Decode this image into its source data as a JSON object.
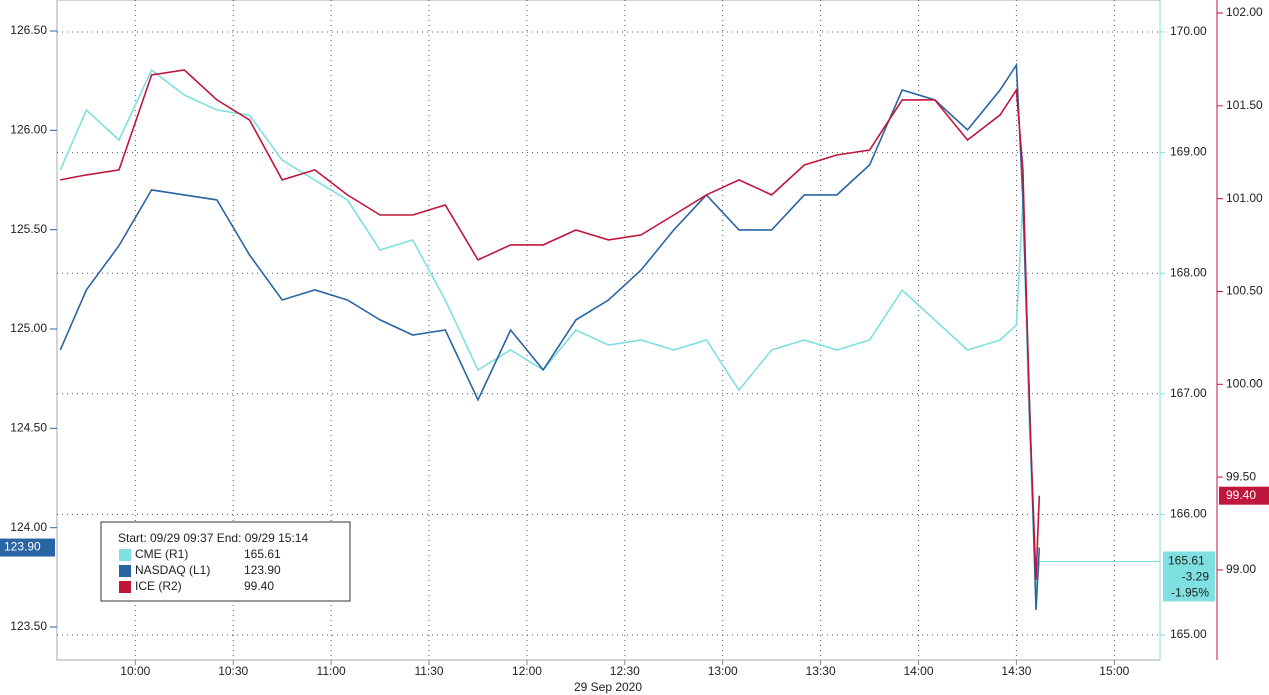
{
  "chart_data": {
    "type": "line",
    "x_label": "29 Sep 2020",
    "x": [
      577,
      585,
      595,
      605,
      615,
      625,
      635,
      645,
      655,
      665,
      675,
      685,
      695,
      705,
      715,
      725,
      735,
      745,
      755,
      765,
      775,
      785,
      795,
      805,
      815,
      825,
      835,
      845,
      855,
      865,
      870,
      872,
      874,
      876,
      877
    ],
    "xlim": [
      576,
      914
    ],
    "xticks": [
      {
        "value": 600,
        "label": "10:00"
      },
      {
        "value": 630,
        "label": "10:30"
      },
      {
        "value": 660,
        "label": "11:00"
      },
      {
        "value": 690,
        "label": "11:30"
      },
      {
        "value": 720,
        "label": "12:00"
      },
      {
        "value": 750,
        "label": "12:30"
      },
      {
        "value": 780,
        "label": "13:00"
      },
      {
        "value": 810,
        "label": "13:30"
      },
      {
        "value": 840,
        "label": "14:00"
      },
      {
        "value": 870,
        "label": "14:30"
      },
      {
        "value": 900,
        "label": "15:00"
      }
    ],
    "ylim": [
      123.334,
      126.656
    ],
    "yticks": [
      {
        "value": 123.5,
        "label": "123.50"
      },
      {
        "value": 124,
        "label": "124.00"
      },
      {
        "value": 124.5,
        "label": "124.50"
      },
      {
        "value": 125,
        "label": "125.00"
      },
      {
        "value": 125.5,
        "label": "125.50"
      },
      {
        "value": 126,
        "label": "126.00"
      },
      {
        "value": 126.5,
        "label": "126.50"
      }
    ],
    "y2lim": [
      164.793,
      170.265
    ],
    "y2ticks": [
      {
        "value": 165,
        "label": "165.00"
      },
      {
        "value": 166,
        "label": "166.00"
      },
      {
        "value": 167,
        "label": "167.00"
      },
      {
        "value": 168,
        "label": "168.00"
      },
      {
        "value": 169,
        "label": "169.00"
      },
      {
        "value": 170,
        "label": "170.00"
      }
    ],
    "y3lim": [
      98.515,
      102.07
    ],
    "y3ticks": [
      {
        "value": 99,
        "label": "99.00"
      },
      {
        "value": 99.5,
        "label": "99.50"
      },
      {
        "value": 100,
        "label": "100.00"
      },
      {
        "value": 100.5,
        "label": "100.50"
      },
      {
        "value": 101,
        "label": "101.00"
      },
      {
        "value": 101.5,
        "label": "101.50"
      },
      {
        "value": 102,
        "label": "102.00"
      }
    ],
    "grid": true,
    "legend_title": "Start: 09/29 09:37 End: 09/29 15:14",
    "series": [
      {
        "name": "CME (R1)",
        "color": "#7ee0e0",
        "axis": "y2",
        "last_label": "165.61",
        "change": "-3.29",
        "change_pct": "-1.95%",
        "values": [
          168.855,
          169.353,
          169.104,
          169.685,
          169.477,
          169.353,
          169.311,
          168.938,
          168.772,
          168.607,
          168.192,
          168.275,
          167.777,
          167.197,
          167.363,
          167.197,
          167.529,
          167.404,
          167.446,
          167.363,
          167.446,
          167.031,
          167.363,
          167.446,
          167.363,
          167.446,
          167.86,
          167.612,
          167.363,
          167.446,
          167.571,
          168.607,
          166.699,
          165.331,
          165.61
        ]
      },
      {
        "name": "NASDAQ (L1)",
        "color": "#2a65a3",
        "axis": "y",
        "last_label": "123.90",
        "values": [
          124.895,
          125.197,
          125.42,
          125.7,
          125.675,
          125.65,
          125.373,
          125.146,
          125.197,
          125.146,
          125.046,
          124.97,
          124.995,
          124.643,
          124.995,
          124.794,
          125.046,
          125.146,
          125.297,
          125.499,
          125.675,
          125.499,
          125.499,
          125.675,
          125.675,
          125.826,
          126.203,
          126.153,
          126.002,
          126.203,
          126.329,
          125.65,
          124.643,
          123.586,
          123.9
        ]
      },
      {
        "name": "ICE (R2)",
        "color": "#c0163c",
        "axis": "y3",
        "last_label": "99.40",
        "values": [
          101.101,
          101.128,
          101.155,
          101.666,
          101.693,
          101.532,
          101.424,
          101.101,
          101.155,
          101.02,
          100.912,
          100.912,
          100.966,
          100.67,
          100.751,
          100.751,
          100.831,
          100.778,
          100.805,
          100.912,
          101.02,
          101.101,
          101.02,
          101.181,
          101.235,
          101.262,
          101.532,
          101.532,
          101.316,
          101.451,
          101.585,
          101.155,
          99.862,
          98.947,
          99.4
        ]
      }
    ]
  }
}
